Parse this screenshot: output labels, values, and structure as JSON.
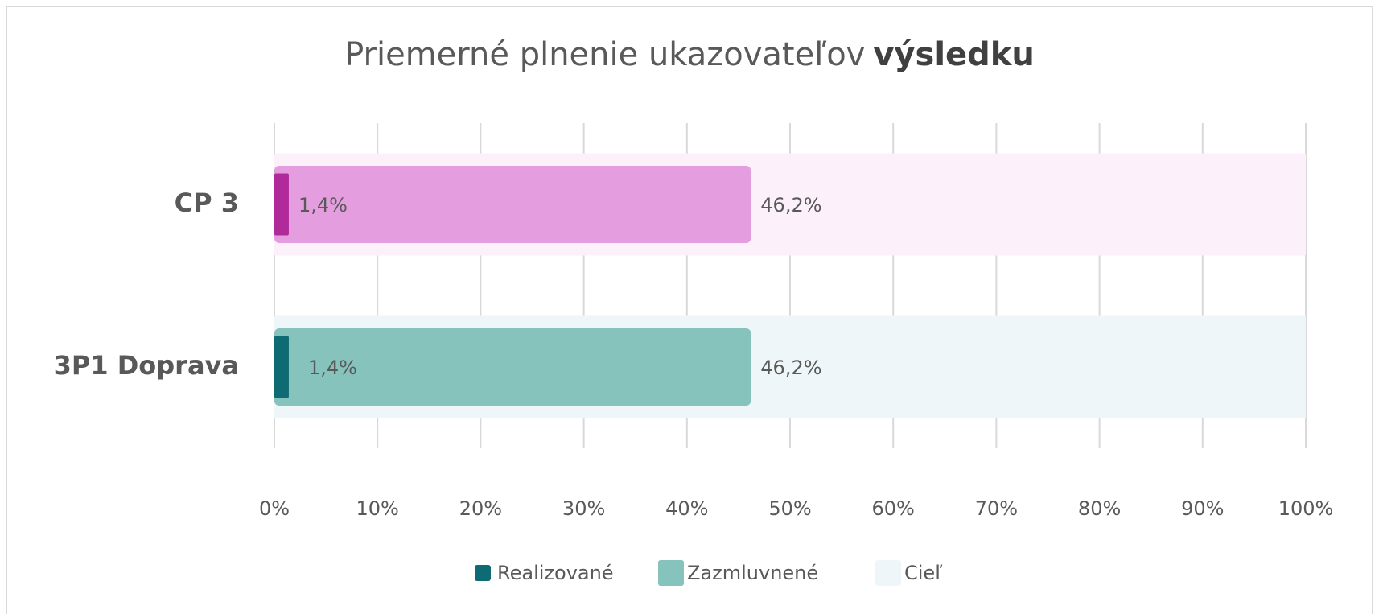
{
  "chart_data": {
    "type": "overlap_bar",
    "title": [
      "Priemerné plnenie ukazovateľov",
      "výsledku"
    ],
    "categories": [
      "CP 3",
      "3P1 Doprava"
    ],
    "series": [
      {
        "name": "Realizované",
        "color": "#0e6b73",
        "colors": [
          "#b02a9a",
          "#0e6b73"
        ],
        "values": [
          1.4,
          1.4
        ],
        "value_labels": [
          "1,4%",
          "1,4%"
        ]
      },
      {
        "name": "Zazmluvnené",
        "color": "#85c3bc",
        "colors": [
          "#e49ddf",
          "#85c3bc"
        ],
        "values": [
          46.2,
          46.2
        ],
        "value_labels": [
          "46,2%",
          "46,2%"
        ]
      },
      {
        "name": "Cieľ",
        "color": "#eef6f9",
        "colors": [
          "#fcf0fa",
          "#eef6f9"
        ],
        "values": [
          100,
          100
        ]
      }
    ],
    "xlim": [
      0,
      100
    ],
    "xticks": [
      {
        "value": 0,
        "label": "0%"
      },
      {
        "value": 10,
        "label": "10%"
      },
      {
        "value": 20,
        "label": "20%"
      },
      {
        "value": 30,
        "label": "30%"
      },
      {
        "value": 40,
        "label": "40%"
      },
      {
        "value": 50,
        "label": "50%"
      },
      {
        "value": 60,
        "label": "60%"
      },
      {
        "value": 70,
        "label": "70%"
      },
      {
        "value": 80,
        "label": "80%"
      },
      {
        "value": 90,
        "label": "90%"
      },
      {
        "value": 100,
        "label": "100%"
      }
    ],
    "grid": true
  }
}
